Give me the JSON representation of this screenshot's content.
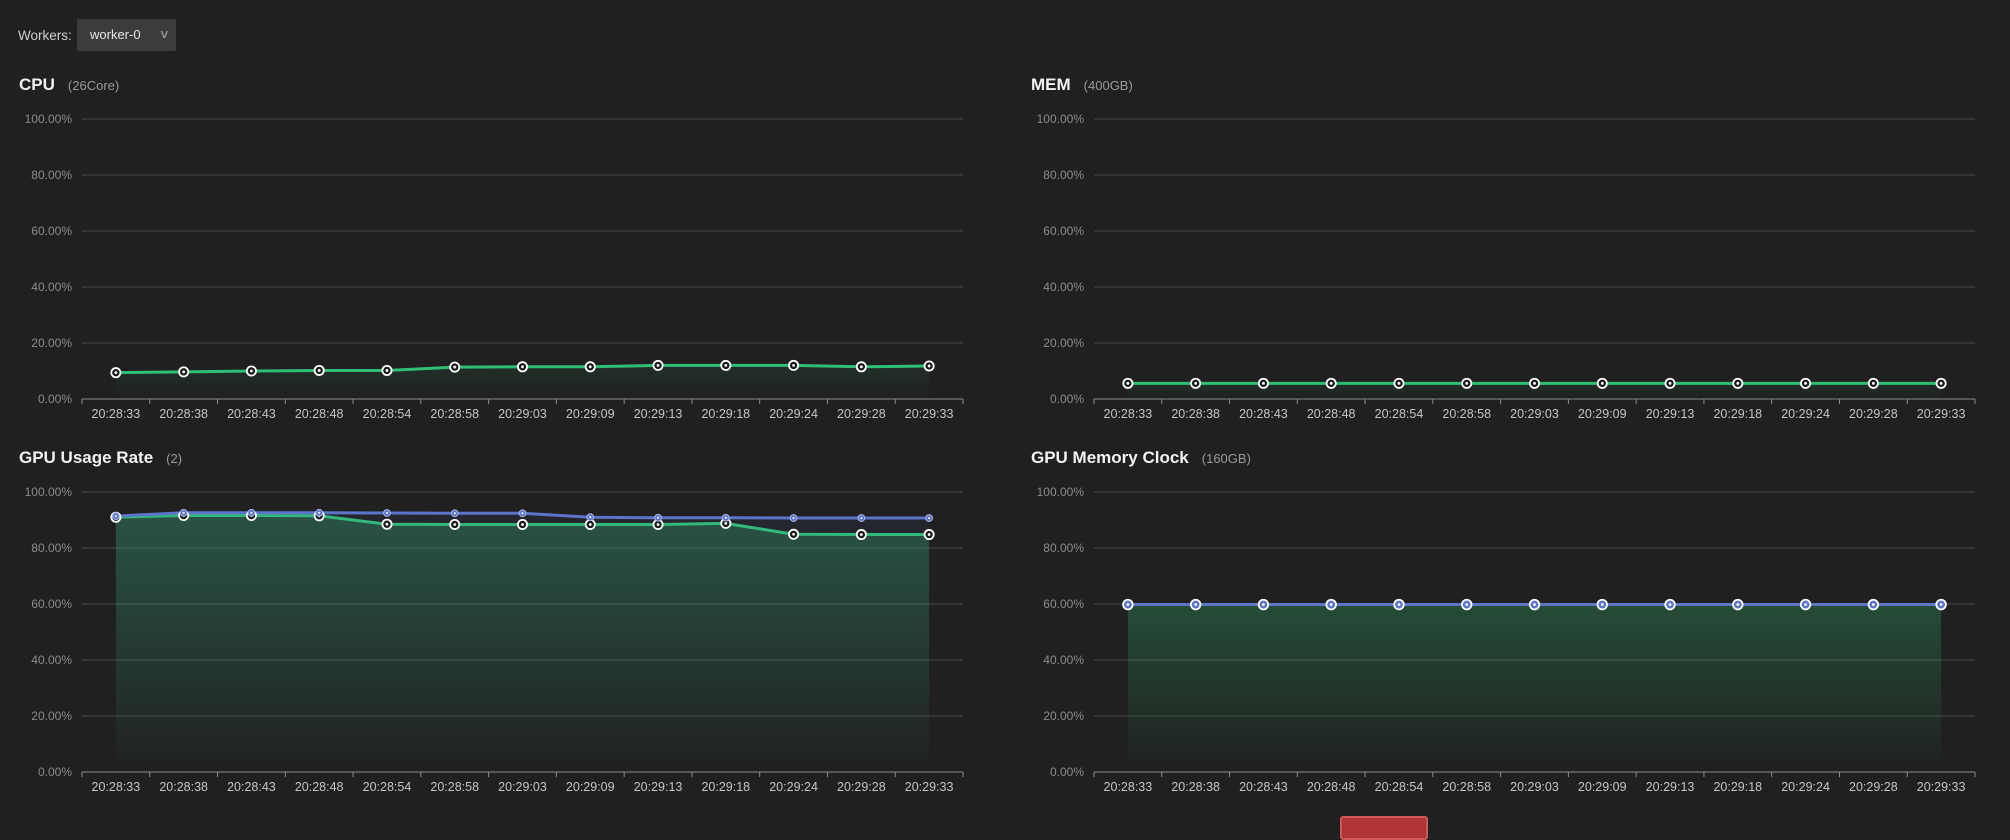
{
  "toolbar": {
    "workers_label": "Workers:",
    "selected_worker": "worker-0",
    "chevron_glyph": "∨"
  },
  "theme": {
    "background": "#202020",
    "title_color": "#f2f2f2",
    "subtitle_color": "#9a9a9a",
    "grid_line": "#474747",
    "axis_line": "#8c8c8c",
    "y_tick_color": "#8b8b8b",
    "x_tick_color": "#c4c4c4",
    "green": "#2EBE74",
    "blue": "#5C74C9",
    "dropdown_bg": "#3c3c3c",
    "red_partial": "#b03434"
  },
  "chart_data": [
    {
      "type": "line",
      "title": "CPU",
      "subtitle": "(26Core)",
      "xlabel": "",
      "ylabel": "",
      "ylim": [
        0,
        100
      ],
      "grid": true,
      "legend_position": "none",
      "yticks": [
        "100.00%",
        "80.00%",
        "60.00%",
        "40.00%",
        "20.00%",
        "0.00%"
      ],
      "x": [
        "20:28:33",
        "20:28:38",
        "20:28:43",
        "20:28:48",
        "20:28:54",
        "20:28:58",
        "20:29:03",
        "20:29:09",
        "20:29:13",
        "20:29:18",
        "20:29:24",
        "20:29:28",
        "20:29:33"
      ],
      "series": [
        {
          "color": "#2EBE74",
          "marker": "open-circle",
          "area_top_opacity": 0.1,
          "values": [
            9.4,
            9.7,
            10.0,
            10.2,
            10.2,
            11.4,
            11.5,
            11.5,
            12.0,
            12.0,
            12.0,
            11.5,
            11.8
          ]
        }
      ]
    },
    {
      "type": "line",
      "title": "MEM",
      "subtitle": "(400GB)",
      "xlabel": "",
      "ylabel": "",
      "ylim": [
        0,
        100
      ],
      "grid": true,
      "legend_position": "none",
      "yticks": [
        "100.00%",
        "80.00%",
        "60.00%",
        "40.00%",
        "20.00%",
        "0.00%"
      ],
      "x": [
        "20:28:33",
        "20:28:38",
        "20:28:43",
        "20:28:48",
        "20:28:54",
        "20:28:58",
        "20:29:03",
        "20:29:09",
        "20:29:13",
        "20:29:18",
        "20:29:24",
        "20:29:28",
        "20:29:33"
      ],
      "series": [
        {
          "color": "#2EBE74",
          "marker": "open-circle",
          "area_top_opacity": 0.1,
          "values": [
            5.6,
            5.6,
            5.6,
            5.6,
            5.6,
            5.6,
            5.6,
            5.6,
            5.6,
            5.6,
            5.6,
            5.6,
            5.6
          ]
        }
      ]
    },
    {
      "type": "line",
      "title": "GPU Usage Rate",
      "subtitle": "(2)",
      "xlabel": "",
      "ylabel": "",
      "ylim": [
        0,
        100
      ],
      "grid": true,
      "legend_position": "none",
      "yticks": [
        "100.00%",
        "80.00%",
        "60.00%",
        "40.00%",
        "20.00%",
        "0.00%"
      ],
      "x": [
        "20:28:33",
        "20:28:38",
        "20:28:43",
        "20:28:48",
        "20:28:54",
        "20:28:58",
        "20:29:03",
        "20:29:09",
        "20:29:13",
        "20:29:18",
        "20:29:24",
        "20:29:28",
        "20:29:33"
      ],
      "series": [
        {
          "color": "#2EBE74",
          "marker": "open-circle",
          "area_top_opacity": 0.3,
          "values": [
            91.0,
            91.6,
            91.6,
            91.5,
            88.5,
            88.4,
            88.4,
            88.4,
            88.4,
            88.8,
            84.9,
            84.8,
            84.8
          ]
        },
        {
          "color": "#5C74C9",
          "marker": "solid-dot",
          "area_top_opacity": 0.08,
          "values": [
            91.4,
            92.6,
            92.6,
            92.6,
            92.5,
            92.4,
            92.4,
            91.0,
            90.8,
            90.8,
            90.7,
            90.7,
            90.7
          ]
        }
      ]
    },
    {
      "type": "line",
      "title": "GPU Memory Clock",
      "subtitle": "(160GB)",
      "xlabel": "",
      "ylabel": "",
      "ylim": [
        0,
        100
      ],
      "grid": true,
      "legend_position": "none",
      "yticks": [
        "100.00%",
        "80.00%",
        "60.00%",
        "40.00%",
        "20.00%",
        "0.00%"
      ],
      "x": [
        "20:28:33",
        "20:28:38",
        "20:28:43",
        "20:28:48",
        "20:28:54",
        "20:28:58",
        "20:29:03",
        "20:29:09",
        "20:29:13",
        "20:29:18",
        "20:29:24",
        "20:29:28",
        "20:29:33"
      ],
      "series": [
        {
          "color": "#2EBE74",
          "marker": "none",
          "area_top_opacity": 0.28,
          "values": [
            59.8,
            59.8,
            59.8,
            59.8,
            59.8,
            59.8,
            59.8,
            59.8,
            59.8,
            59.8,
            59.8,
            59.8,
            59.8
          ]
        },
        {
          "color": "#5C74C9",
          "marker": "open-circle-filled",
          "area_top_opacity": 0,
          "values": [
            59.8,
            59.8,
            59.8,
            59.8,
            59.8,
            59.8,
            59.8,
            59.8,
            59.8,
            59.8,
            59.8,
            59.8,
            59.8
          ]
        }
      ]
    }
  ]
}
